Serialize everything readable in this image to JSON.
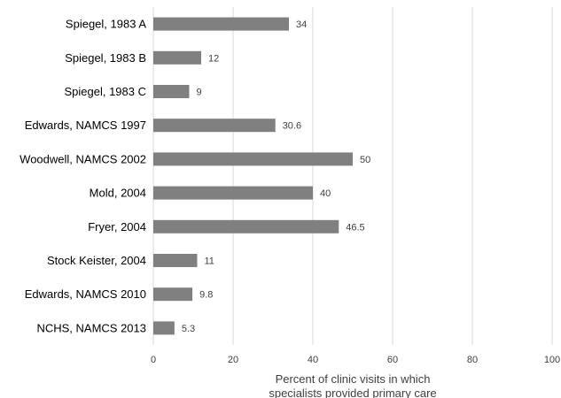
{
  "chart_data": {
    "type": "bar",
    "orientation": "horizontal",
    "categories": [
      "Spiegel, 1983 A",
      "Spiegel, 1983 B",
      "Spiegel, 1983 C",
      "Edwards, NAMCS 1997",
      "Woodwell, NAMCS 2002",
      "Mold, 2004",
      "Fryer, 2004",
      "Stock Keister, 2004",
      "Edwards, NAMCS 2010",
      "NCHS, NAMCS 2013"
    ],
    "values": [
      34,
      12,
      9,
      30.6,
      50,
      40,
      46.5,
      11,
      9.8,
      5.3
    ],
    "data_labels": [
      "34",
      "12",
      "9",
      "30.6",
      "50",
      "40",
      "46.5",
      "11",
      "9.8",
      "5.3"
    ],
    "xlabel_lines": [
      "Percent of clinic visits in which",
      "specialists provided primary care"
    ],
    "ylabel": "",
    "xlim": [
      0,
      100
    ],
    "xticks": [
      0,
      20,
      40,
      60,
      80,
      100
    ],
    "grid": true,
    "legend": "none",
    "bar_color": "#808080",
    "grid_color": "#d9d9d9"
  }
}
